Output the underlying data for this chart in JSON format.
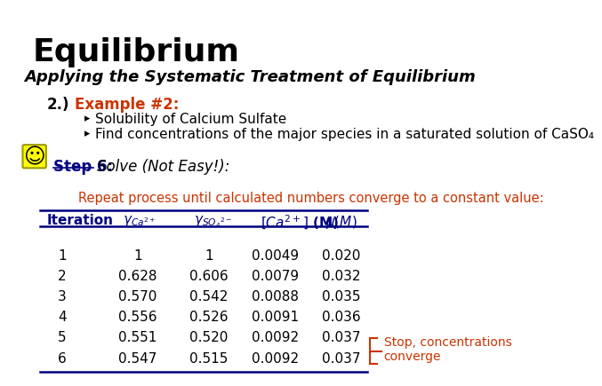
{
  "title": "Equilibrium",
  "subtitle": "Applying the Systematic Treatment of Equilibrium",
  "example_num": "2.)",
  "example_label": "Example #2:",
  "bullets": [
    "Solubility of Calcium Sulfate",
    "Find concentrations of the major species in a saturated solution of CaSO₄"
  ],
  "step_label": "Step 6:",
  "step_text": "Solve (Not Easy!):",
  "repeat_text": "Repeat process until calculated numbers converge to a constant value:",
  "table_data": [
    [
      "1",
      "1",
      "1",
      "0.0049",
      "0.020"
    ],
    [
      "2",
      "0.628",
      "0.606",
      "0.0079",
      "0.032"
    ],
    [
      "3",
      "0.570",
      "0.542",
      "0.0088",
      "0.035"
    ],
    [
      "4",
      "0.556",
      "0.526",
      "0.0091",
      "0.036"
    ],
    [
      "5",
      "0.551",
      "0.520",
      "0.0092",
      "0.037"
    ],
    [
      "6",
      "0.547",
      "0.515",
      "0.0092",
      "0.037"
    ]
  ],
  "stop_text": "Stop, concentrations\nconverge",
  "bg_color": "#ffffff",
  "title_color": "#000000",
  "subtitle_color": "#000000",
  "example_color": "#cc3300",
  "step_color": "#000080",
  "repeat_color": "#cc3300",
  "table_header_color": "#000080",
  "table_data_color": "#000000",
  "stop_color": "#cc3300",
  "smiley_bg": "#ffff00",
  "smiley_color": "#000000",
  "table_line_color": "#000080"
}
